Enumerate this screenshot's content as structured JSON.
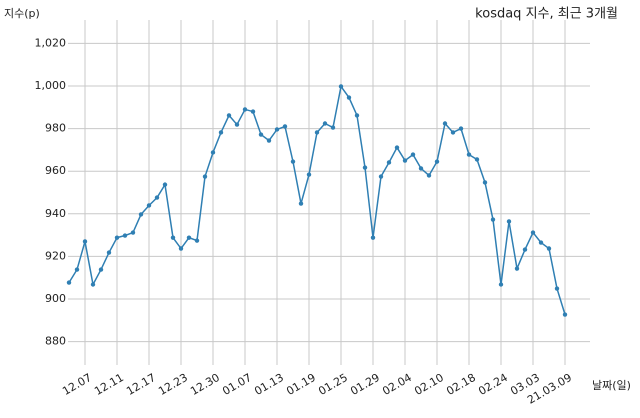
{
  "chart_data": {
    "type": "line",
    "title": "kosdaq 지수, 최근 3개월",
    "y_label": "지수(p)",
    "x_label": "날짜(일)",
    "categories": [
      null,
      null,
      "12.07",
      null,
      null,
      null,
      "12.11",
      null,
      null,
      null,
      "12.17",
      null,
      null,
      null,
      "12.23",
      null,
      null,
      null,
      "12.30",
      null,
      null,
      null,
      "01.07",
      null,
      null,
      null,
      "01.13",
      null,
      null,
      null,
      "01.19",
      null,
      null,
      null,
      "01.25",
      null,
      null,
      null,
      "01.29",
      null,
      null,
      null,
      "02.04",
      null,
      null,
      null,
      "02.10",
      null,
      null,
      null,
      "02.18",
      null,
      null,
      null,
      "02.24",
      null,
      null,
      null,
      "03.03",
      null,
      null,
      null,
      "21.03.09"
    ],
    "values": [
      907.7,
      913.8,
      927.0,
      906.8,
      913.8,
      921.8,
      928.8,
      929.8,
      931.2,
      939.7,
      943.9,
      947.6,
      953.7,
      928.8,
      923.7,
      928.8,
      927.4,
      957.5,
      968.8,
      978.2,
      986.2,
      981.9,
      989.0,
      988.0,
      977.2,
      974.4,
      979.6,
      981.0,
      964.5,
      944.8,
      958.4,
      978.2,
      982.4,
      980.5,
      999.8,
      994.6,
      986.2,
      961.7,
      928.8,
      957.5,
      964.1,
      971.1,
      965.0,
      967.8,
      961.3,
      958.0,
      964.5,
      982.4,
      978.2,
      980.0,
      967.8,
      965.5,
      954.7,
      937.3,
      906.8,
      936.4,
      914.3,
      923.2,
      931.2,
      926.5,
      923.7,
      904.9,
      892.7
    ],
    "color": "#2f7fb3",
    "ylim": [
      869,
      1031
    ],
    "yticks": [
      880,
      900,
      920,
      940,
      960,
      980,
      {
        "value": 1000,
        "label": "1,000"
      },
      {
        "value": 1020,
        "label": "1,020"
      }
    ],
    "grid": true
  }
}
